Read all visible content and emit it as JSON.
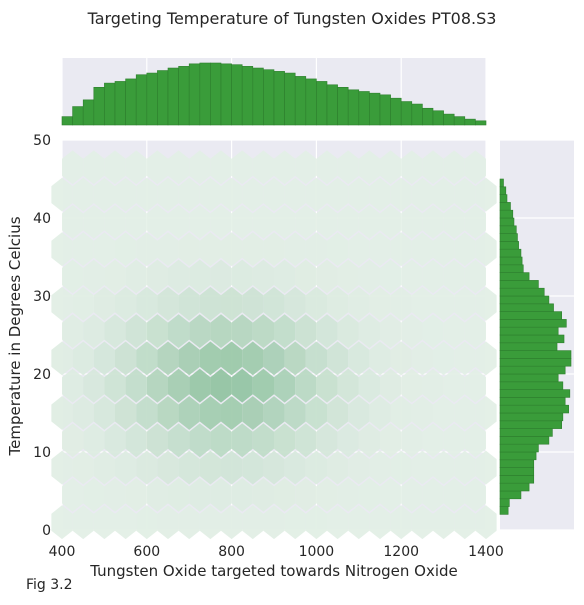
{
  "chart_data": {
    "type": "hexbin-joint",
    "title": "Targeting Temperature of Tungsten Oxides PT08.S3",
    "xlabel": "Tungsten Oxide targeted towards Nitrogen Oxide",
    "ylabel": "Temperature in Degrees Celcius",
    "xlim": [
      400,
      1400
    ],
    "ylim": [
      0,
      50
    ],
    "x_ticks": [
      400,
      600,
      800,
      1000,
      1200,
      1400
    ],
    "y_ticks": [
      0,
      10,
      20,
      30,
      40,
      50
    ],
    "colors": {
      "bar": "#3a9c3a",
      "bar_edge": "#2d7f2d",
      "hex_base": "#e3efe6",
      "hex_dark": "#93c4a2",
      "panel_bg": "#eaeaf2",
      "grid": "#ffffff"
    },
    "grid": true,
    "marginal_x": {
      "bin_edges": [
        400,
        425,
        450,
        475,
        500,
        525,
        550,
        575,
        600,
        625,
        650,
        675,
        700,
        725,
        750,
        775,
        800,
        825,
        850,
        875,
        900,
        925,
        950,
        975,
        1000,
        1025,
        1050,
        1075,
        1100,
        1125,
        1150,
        1175,
        1200,
        1225,
        1250,
        1275,
        1300,
        1325,
        1350,
        1375,
        1400
      ],
      "counts": [
        10,
        22,
        30,
        45,
        50,
        52,
        55,
        60,
        62,
        65,
        68,
        70,
        73,
        74,
        74,
        73,
        72,
        70,
        68,
        66,
        64,
        62,
        58,
        55,
        52,
        48,
        45,
        42,
        40,
        38,
        36,
        32,
        28,
        25,
        20,
        17,
        13,
        10,
        7,
        5
      ]
    },
    "marginal_y": {
      "bin_edges": [
        0,
        1,
        2,
        3,
        4,
        5,
        6,
        7,
        8,
        9,
        10,
        11,
        12,
        13,
        14,
        15,
        16,
        17,
        18,
        19,
        20,
        21,
        22,
        23,
        24,
        25,
        26,
        27,
        28,
        29,
        30,
        31,
        32,
        33,
        34,
        35,
        36,
        37,
        38,
        39,
        40,
        41,
        42,
        43,
        44,
        45,
        46,
        47,
        48,
        49,
        50
      ],
      "counts": [
        0,
        0,
        7,
        8,
        18,
        25,
        29,
        29,
        29,
        31,
        33,
        42,
        45,
        53,
        54,
        59,
        56,
        60,
        54,
        50,
        56,
        61,
        61,
        49,
        55,
        50,
        57,
        53,
        46,
        42,
        38,
        33,
        25,
        20,
        19,
        18,
        16,
        15,
        14,
        12,
        11,
        9,
        6,
        5,
        3,
        0,
        0,
        0,
        0,
        0
      ]
    },
    "hexbin": {
      "x_step": 50,
      "y_step": 3.5,
      "density": "peak near x ≈ 750–850, y ≈ 14–26; fades toward edges"
    }
  },
  "caption": "Fig 3.2"
}
